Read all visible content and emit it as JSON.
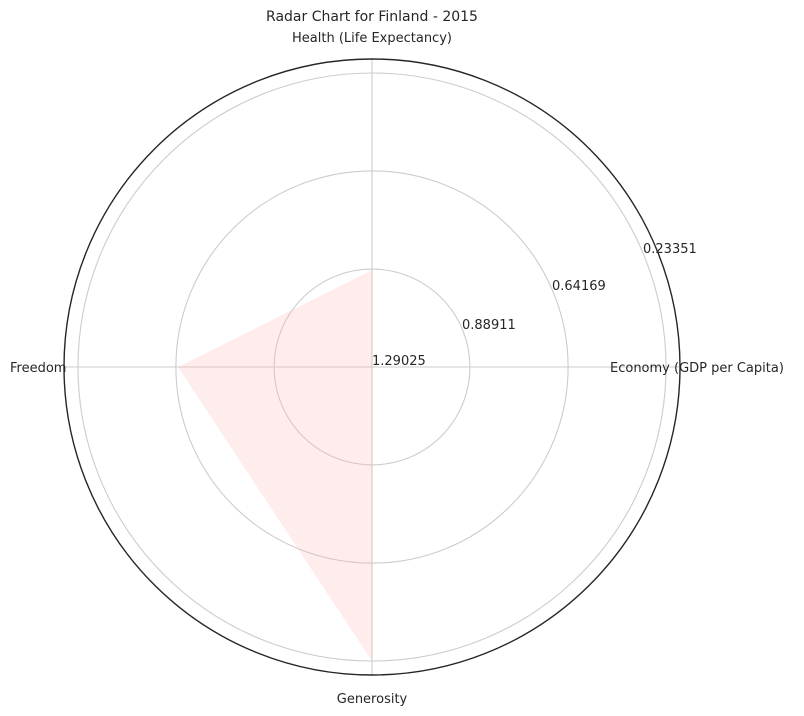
{
  "chart_data": {
    "type": "radar",
    "title": "Radar Chart for Finland - 2015",
    "axes": [
      "Economy (GDP per Capita)",
      "Health (Life Expectancy)",
      "Freedom",
      "Generosity"
    ],
    "radial_tick_labels": [
      "1.29025",
      "0.88911",
      "0.64169",
      "0.23351"
    ],
    "series": [
      {
        "values": [
          0.0,
          0.33,
          0.66,
          1.0
        ]
      }
    ],
    "grid": true,
    "colors": {
      "fill": "#ffb3b8",
      "grid": "#cccccc",
      "frame": "#262626"
    }
  }
}
